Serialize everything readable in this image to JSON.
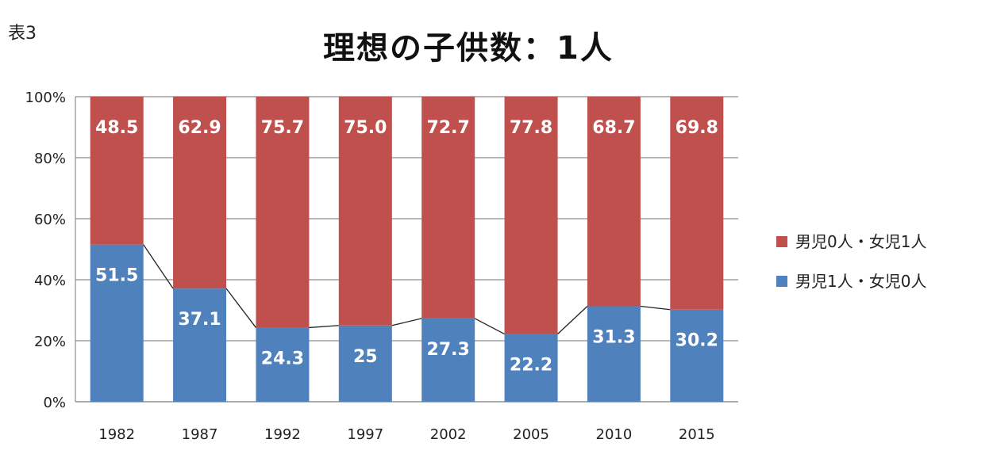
{
  "table_label": "表3",
  "chart_data": {
    "type": "bar",
    "stacked": "percent",
    "title": "理想の子供数：1人",
    "categories": [
      "1982",
      "1987",
      "1992",
      "1997",
      "2002",
      "2005",
      "2010",
      "2015"
    ],
    "series": [
      {
        "name": "男児1人・女児0人",
        "color": "#4f81bd",
        "values": [
          51.5,
          37.1,
          24.3,
          25,
          27.3,
          22.2,
          31.3,
          30.2
        ],
        "labels": [
          "51.5",
          "37.1",
          "24.3",
          "25",
          "27.3",
          "22.2",
          "31.3",
          "30.2"
        ]
      },
      {
        "name": "男児0人・女児1人",
        "color": "#c0504d",
        "values": [
          48.5,
          62.9,
          75.7,
          75.0,
          72.7,
          77.8,
          68.7,
          69.8
        ],
        "labels": [
          "48.5",
          "62.9",
          "75.7",
          "75.0",
          "72.7",
          "77.8",
          "68.7",
          "69.8"
        ]
      }
    ],
    "yticks": [
      "0%",
      "20%",
      "40%",
      "60%",
      "80%",
      "100%"
    ],
    "ylim": [
      0,
      100
    ],
    "grid": true,
    "series_lines": true,
    "legend": [
      "男児0人・女児1人",
      "男児1人・女児0人"
    ],
    "legend_position": "right"
  }
}
